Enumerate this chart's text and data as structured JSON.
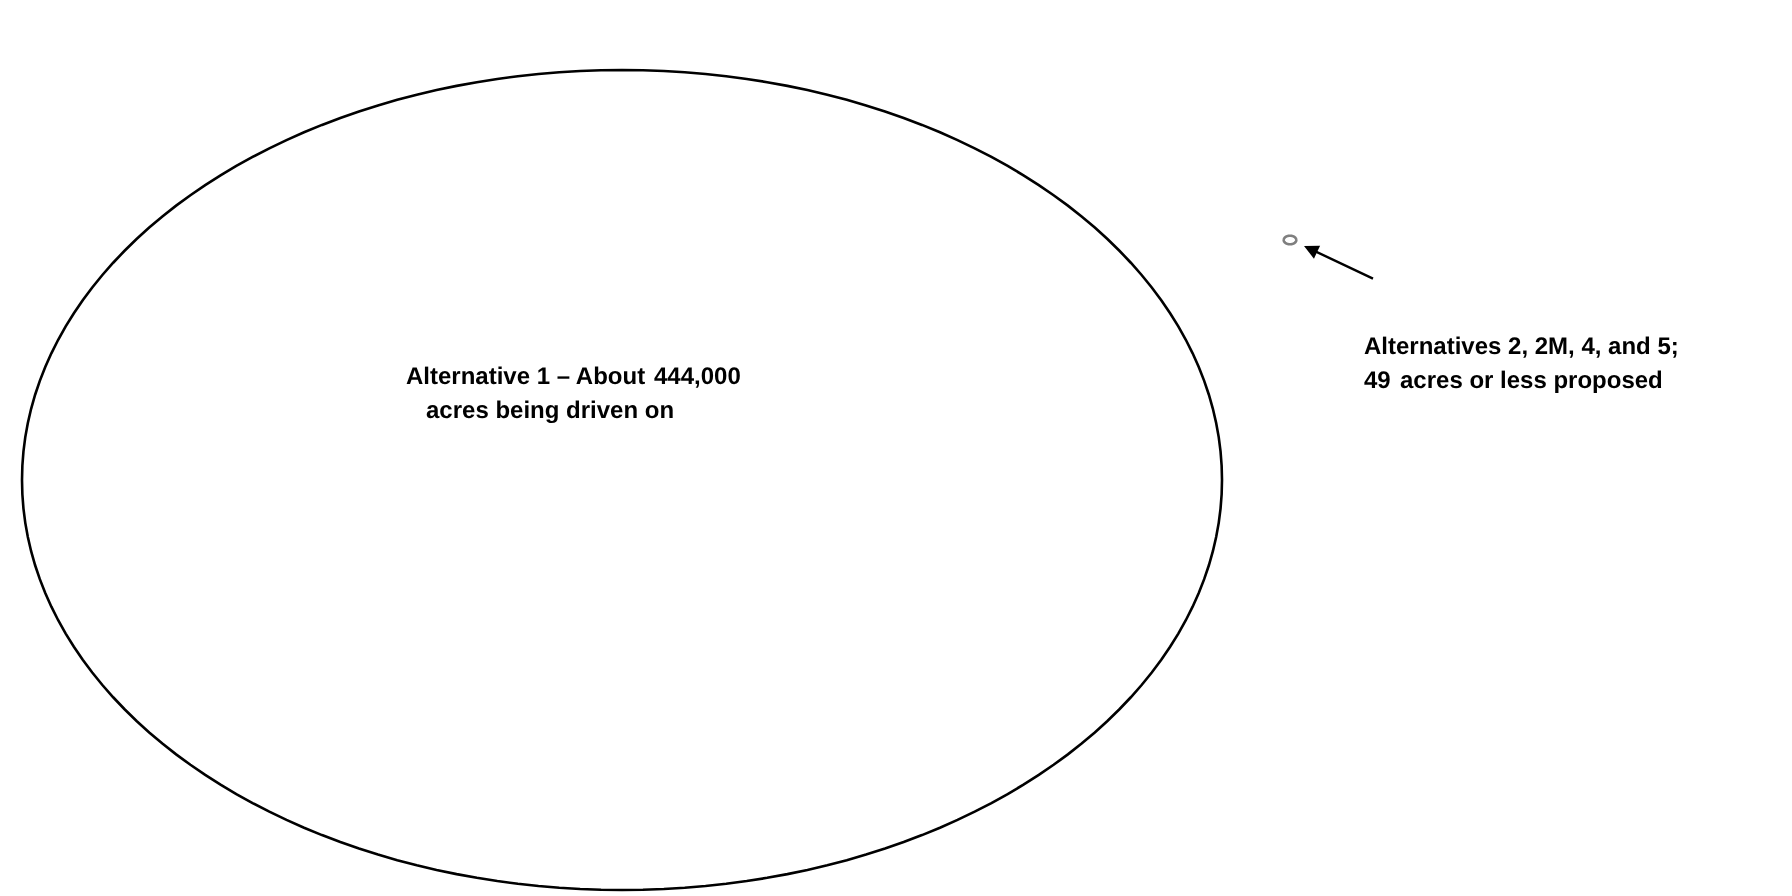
{
  "chart_data": {
    "type": "other",
    "categories": [
      "Alternative 1 – About",
      null
    ],
    "values": [
      444000,
      49
    ],
    "value_labels": [
      "444,000",
      "49"
    ],
    "annotations": [
      "acres being driven on",
      "Alternatives 2, 2M, 4, and 5;",
      "acres or less proposed"
    ],
    "colors": [
      "#000000",
      "#7f7f7f"
    ]
  }
}
